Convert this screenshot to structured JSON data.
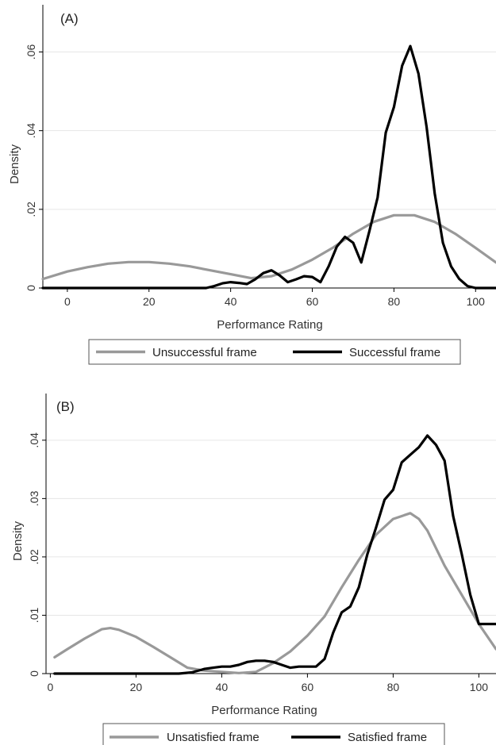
{
  "colors": {
    "unsuccessful": "#999999",
    "successful": "#000000",
    "grid": "#e6e6e6",
    "axis": "#000000"
  },
  "chart_data": [
    {
      "type": "line",
      "panel_label": "(A)",
      "xlabel": "Performance Rating",
      "ylabel": "Density",
      "xlim": [
        -6,
        105
      ],
      "ylim": [
        0,
        0.072
      ],
      "xticks": [
        0,
        20,
        40,
        60,
        80,
        100
      ],
      "xtick_labels": [
        "0",
        "20",
        "40",
        "60",
        "80",
        "100"
      ],
      "yticks": [
        0,
        0.02,
        0.04,
        0.06
      ],
      "ytick_labels": [
        "0",
        ".02",
        ".04",
        ".06"
      ],
      "grid": true,
      "legend_position": "bottom",
      "series": [
        {
          "name": "Unsuccessful frame",
          "color": "#999999",
          "x": [
            -6,
            0,
            5,
            10,
            15,
            20,
            25,
            30,
            35,
            40,
            45,
            50,
            55,
            60,
            65,
            70,
            75,
            80,
            85,
            90,
            95,
            100,
            105
          ],
          "y": [
            0.0023,
            0.0042,
            0.0053,
            0.0062,
            0.0066,
            0.0066,
            0.0062,
            0.0055,
            0.0045,
            0.0035,
            0.0025,
            0.003,
            0.0047,
            0.0072,
            0.0102,
            0.0138,
            0.0168,
            0.0185,
            0.0185,
            0.0168,
            0.0138,
            0.0102,
            0.0065
          ]
        },
        {
          "name": "Successful frame",
          "color": "#000000",
          "x": [
            -6,
            0,
            10,
            20,
            30,
            34,
            36,
            38,
            40,
            42,
            44,
            46,
            48,
            50,
            52,
            54,
            56,
            58,
            60,
            62,
            64,
            66,
            68,
            70,
            72,
            74,
            76,
            78,
            80,
            82,
            84,
            86,
            88,
            90,
            92,
            94,
            96,
            98,
            100,
            102,
            105
          ],
          "y": [
            0,
            0,
            0,
            0,
            0,
            0,
            0.0005,
            0.0012,
            0.0015,
            0.0013,
            0.001,
            0.0022,
            0.0038,
            0.0045,
            0.0032,
            0.0015,
            0.0022,
            0.003,
            0.0028,
            0.0015,
            0.0055,
            0.0105,
            0.013,
            0.0115,
            0.0065,
            0.0145,
            0.023,
            0.0395,
            0.046,
            0.0565,
            0.0615,
            0.0545,
            0.041,
            0.024,
            0.0115,
            0.0055,
            0.0023,
            0.0005,
            0,
            0,
            0
          ]
        }
      ]
    },
    {
      "type": "line",
      "panel_label": "(B)",
      "xlabel": "Performance Rating",
      "ylabel": "Density",
      "xlim": [
        -1,
        104
      ],
      "ylim": [
        0,
        0.048
      ],
      "xticks": [
        0,
        20,
        40,
        60,
        80,
        100
      ],
      "xtick_labels": [
        "0",
        "20",
        "40",
        "60",
        "80",
        "100"
      ],
      "yticks": [
        0,
        0.01,
        0.02,
        0.03,
        0.04
      ],
      "ytick_labels": [
        "0",
        ".01",
        ".02",
        ".03",
        ".04"
      ],
      "grid": true,
      "legend_position": "bottom",
      "series": [
        {
          "name": "Unsatisfied frame",
          "color": "#999999",
          "x": [
            1,
            4,
            8,
            12,
            14,
            16,
            20,
            24,
            28,
            32,
            36,
            40,
            44,
            48,
            52,
            56,
            60,
            64,
            68,
            72,
            76,
            80,
            84,
            86,
            88,
            92,
            96,
            100,
            104
          ],
          "y": [
            0.0028,
            0.0042,
            0.006,
            0.0076,
            0.0078,
            0.0075,
            0.0063,
            0.0046,
            0.0028,
            0.001,
            0.0005,
            0.0003,
            0.0001,
            0.0003,
            0.0018,
            0.0038,
            0.0065,
            0.0098,
            0.0148,
            0.0195,
            0.0238,
            0.0265,
            0.0275,
            0.0265,
            0.0245,
            0.0185,
            0.0135,
            0.0085,
            0.0042
          ]
        },
        {
          "name": "Satisfied frame",
          "color": "#000000",
          "x": [
            1,
            10,
            20,
            30,
            33,
            36,
            38,
            40,
            42,
            44,
            46,
            48,
            50,
            52,
            54,
            56,
            58,
            60,
            62,
            64,
            66,
            68,
            70,
            72,
            74,
            76,
            78,
            80,
            82,
            84,
            86,
            88,
            90,
            92,
            94,
            96,
            98,
            100,
            102,
            104
          ],
          "y": [
            0,
            0,
            0,
            0,
            0.0002,
            0.0008,
            0.001,
            0.0012,
            0.0012,
            0.0015,
            0.002,
            0.0022,
            0.0022,
            0.002,
            0.0015,
            0.001,
            0.0012,
            0.0012,
            0.0012,
            0.0025,
            0.007,
            0.0105,
            0.0115,
            0.0148,
            0.0205,
            0.025,
            0.0298,
            0.0315,
            0.0362,
            0.0375,
            0.0388,
            0.0408,
            0.0392,
            0.0365,
            0.027,
            0.0205,
            0.0135,
            0.0085,
            0.0085,
            0.0085
          ]
        }
      ]
    }
  ]
}
